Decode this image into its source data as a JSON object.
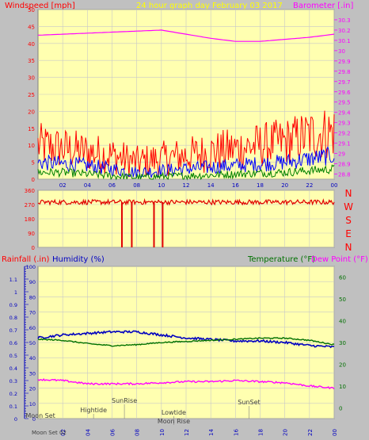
{
  "header": {
    "title": "24 hour graph day   February 03 2017",
    "wind_label": "Windspeed [mph]",
    "baro_label": "Barometer [.in]"
  },
  "colors": {
    "plot_bg": "#ffffb0",
    "grid": "#c8c8c8",
    "axis_tick_text": "#0000c0",
    "wind_gust": "#ff0000",
    "wind_avg": "#0000ff",
    "wind_low": "#008000",
    "barometer": "#ff00ff",
    "direction": "#e00000",
    "humidity": "#0000c0",
    "temperature": "#007000",
    "dew_point": "#ff00ff",
    "title": "#ffff00"
  },
  "chart_data": [
    {
      "id": "wind-barometer",
      "type": "line",
      "title": "24 hour graph day   February 03 2017",
      "x_ticks": [
        "02",
        "04",
        "06",
        "08",
        "10",
        "12",
        "14",
        "16",
        "18",
        "20",
        "22",
        "00"
      ],
      "y_left": {
        "label": "Windspeed [mph]",
        "min": 0,
        "max": 50,
        "ticks": [
          0,
          5,
          10,
          15,
          20,
          25,
          30,
          35,
          40,
          45,
          50
        ]
      },
      "y_right": {
        "label": "Barometer [.in]",
        "min": 28.75,
        "max": 30.4,
        "ticks": [
          "28.8",
          "28.9",
          "29",
          "29.1",
          "29.2",
          "29.3",
          "29.4",
          "29.5",
          "29.6",
          "29.7",
          "29.8",
          "29.9",
          "30",
          "30.1",
          "30.2",
          "30.3"
        ]
      },
      "barometer_trend": {
        "hours": [
          0,
          4,
          8,
          10,
          12,
          14,
          16,
          18,
          20,
          22,
          24
        ],
        "values": [
          30.15,
          30.17,
          30.19,
          30.2,
          30.16,
          30.12,
          30.09,
          30.09,
          30.11,
          30.13,
          30.16
        ]
      },
      "wind_gust_trend": {
        "hours": [
          0,
          2,
          4,
          6,
          8,
          10,
          12,
          14,
          16,
          18,
          20,
          22,
          24
        ],
        "values": [
          10,
          9,
          8,
          7,
          5,
          6,
          7,
          8,
          9,
          10,
          11,
          13,
          14
        ]
      },
      "wind_avg_trend": {
        "hours": [
          0,
          2,
          4,
          6,
          8,
          10,
          12,
          14,
          16,
          18,
          20,
          22,
          24
        ],
        "values": [
          5,
          4.5,
          4,
          3,
          2,
          2.5,
          3,
          3.5,
          4,
          4.5,
          5,
          6,
          7
        ]
      },
      "wind_low_trend": {
        "hours": [
          0,
          2,
          4,
          6,
          8,
          10,
          12,
          14,
          16,
          18,
          20,
          22,
          24
        ],
        "values": [
          2,
          2,
          1.5,
          1,
          0.5,
          0.8,
          1,
          1.2,
          1.5,
          1.8,
          2,
          2.5,
          3
        ]
      }
    },
    {
      "id": "wind-direction",
      "type": "line",
      "y_left": {
        "min": 0,
        "max": 360,
        "ticks": [
          "0",
          "90",
          "180",
          "270",
          "360"
        ]
      },
      "compass_labels": [
        "N",
        "W",
        "S",
        "E",
        "N"
      ],
      "direction_mean": 285,
      "dips": [
        {
          "hour": 6.8,
          "to": 0
        },
        {
          "hour": 7.6,
          "to": 0
        },
        {
          "hour": 9.4,
          "to": 0
        },
        {
          "hour": 10.1,
          "to": 0
        }
      ]
    },
    {
      "id": "temp-humidity",
      "type": "line",
      "labels": {
        "rainfall": "Rainfall (.in)",
        "humidity": "Humidity (%)",
        "temperature": "Temperature (°F)",
        "dew_point": "Dew Point (°F)"
      },
      "y_left_outer": {
        "label": "Rainfall (.in)",
        "min": 0,
        "max": 1.2,
        "ticks": [
          "0",
          "0.1",
          "0.2",
          "0.3",
          "0.4",
          "0.5",
          "0.6",
          "0.7",
          "0.8",
          "0.9",
          "1",
          "1.1"
        ]
      },
      "y_left_inner": {
        "label": "Humidity (%)",
        "min": 0,
        "max": 100,
        "ticks": [
          "0",
          "10",
          "20",
          "30",
          "40",
          "50",
          "60",
          "70",
          "80",
          "90",
          "100"
        ]
      },
      "y_right": {
        "label": "Temperature (°F)",
        "min": -5,
        "max": 65,
        "ticks": [
          "0",
          "10",
          "20",
          "30",
          "40",
          "50",
          "60"
        ]
      },
      "x_ticks": [
        "02",
        "04",
        "06",
        "08",
        "10",
        "12",
        "14",
        "16",
        "18",
        "20",
        "22",
        "00"
      ],
      "humidity": {
        "hours": [
          0,
          2,
          4,
          6,
          8,
          10,
          12,
          14,
          16,
          18,
          20,
          22,
          24
        ],
        "values": [
          53,
          55,
          56,
          57,
          57,
          55,
          53,
          52,
          51,
          51,
          50,
          48,
          47
        ]
      },
      "temperature": {
        "hours": [
          0,
          2,
          4,
          6,
          8,
          10,
          12,
          14,
          16,
          18,
          20,
          22,
          24
        ],
        "values": [
          31.5,
          31,
          29.5,
          28.5,
          29,
          30,
          30.5,
          31,
          31.5,
          32,
          32,
          31,
          29
        ]
      },
      "dew_point": {
        "hours": [
          0,
          2,
          4,
          6,
          8,
          10,
          12,
          14,
          16,
          18,
          20,
          22,
          24
        ],
        "values": [
          13,
          12.5,
          11,
          11,
          11,
          11.5,
          12,
          12,
          12.5,
          12,
          11.5,
          10,
          9
        ]
      },
      "annotations": [
        {
          "text": "Moon Set",
          "hour": 0.2
        },
        {
          "text": "Hightide",
          "hour": 4.5
        },
        {
          "text": "SunRise",
          "hour": 7.0
        },
        {
          "text": "Lowtide",
          "hour": 11.0
        },
        {
          "text": "Moon Rise",
          "hour": 11.0
        },
        {
          "text": "SunSet",
          "hour": 17.1
        }
      ],
      "x_first_label": "Moon Set 02"
    }
  ]
}
